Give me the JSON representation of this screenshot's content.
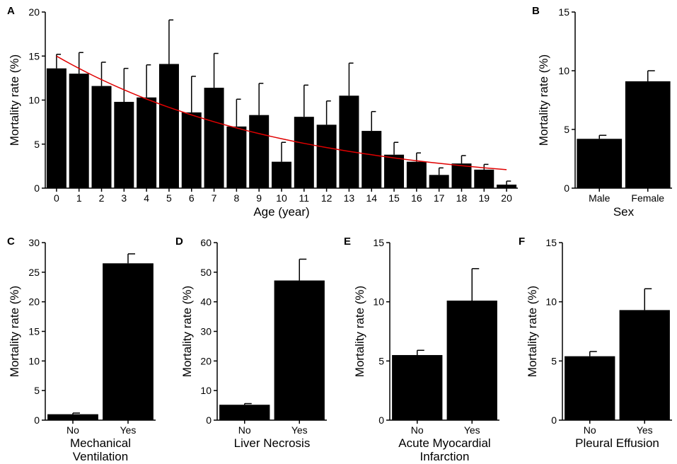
{
  "chart_data": [
    {
      "panel": "A",
      "type": "bar",
      "xlabel": "Age (year)",
      "ylabel": "Mortality rate (%)",
      "ylim": [
        0,
        20
      ],
      "yticks": [
        0,
        5,
        10,
        15,
        20
      ],
      "categories": [
        "0",
        "1",
        "2",
        "3",
        "4",
        "5",
        "6",
        "7",
        "8",
        "9",
        "10",
        "11",
        "12",
        "13",
        "14",
        "15",
        "16",
        "17",
        "18",
        "19",
        "20"
      ],
      "values": [
        13.6,
        13.0,
        11.6,
        9.8,
        10.3,
        14.1,
        8.6,
        11.4,
        7.0,
        8.3,
        3.0,
        8.1,
        7.2,
        10.5,
        6.5,
        3.8,
        3.0,
        1.5,
        2.8,
        2.1,
        0.4
      ],
      "errors": [
        1.6,
        2.4,
        2.7,
        3.8,
        3.7,
        5.0,
        4.1,
        3.9,
        3.1,
        3.6,
        2.2,
        3.6,
        2.7,
        3.7,
        2.2,
        1.4,
        1.0,
        0.8,
        0.9,
        0.6,
        0.4
      ],
      "fit_line": {
        "color": "#e00000",
        "x": [
          0,
          20
        ],
        "y_start": 15.0,
        "y_end": 2.1
      }
    },
    {
      "panel": "B",
      "type": "bar",
      "xlabel": "Sex",
      "ylabel": "Mortality rate (%)",
      "ylim": [
        0,
        15
      ],
      "yticks": [
        0,
        5,
        10,
        15
      ],
      "categories": [
        "Male",
        "Female"
      ],
      "values": [
        4.2,
        9.1
      ],
      "errors": [
        0.3,
        0.9
      ]
    },
    {
      "panel": "C",
      "type": "bar",
      "xlabel": [
        "Mechanical",
        "Ventilation"
      ],
      "ylabel": "Mortality rate (%)",
      "ylim": [
        0,
        30
      ],
      "yticks": [
        0,
        5,
        10,
        15,
        20,
        25,
        30
      ],
      "categories": [
        "No",
        "Yes"
      ],
      "values": [
        1.0,
        26.5
      ],
      "errors": [
        0.2,
        1.6
      ]
    },
    {
      "panel": "D",
      "type": "bar",
      "xlabel": [
        "Liver Necrosis"
      ],
      "ylabel": "Mortality rate (%)",
      "ylim": [
        0,
        60
      ],
      "yticks": [
        0,
        10,
        20,
        30,
        40,
        50,
        60
      ],
      "categories": [
        "No",
        "Yes"
      ],
      "values": [
        5.2,
        47.2
      ],
      "errors": [
        0.4,
        7.2
      ]
    },
    {
      "panel": "E",
      "type": "bar",
      "xlabel": [
        "Acute Myocardial",
        "Infarction"
      ],
      "ylabel": "Mortality rate (%)",
      "ylim": [
        0,
        15
      ],
      "yticks": [
        0,
        5,
        10,
        15
      ],
      "categories": [
        "No",
        "Yes"
      ],
      "values": [
        5.5,
        10.1
      ],
      "errors": [
        0.4,
        2.7
      ]
    },
    {
      "panel": "F",
      "type": "bar",
      "xlabel": [
        "Pleural Effusion"
      ],
      "ylabel": "Mortality rate (%)",
      "ylim": [
        0,
        15
      ],
      "yticks": [
        0,
        5,
        10,
        15
      ],
      "categories": [
        "No",
        "Yes"
      ],
      "values": [
        5.4,
        9.3
      ],
      "errors": [
        0.4,
        1.8
      ]
    }
  ],
  "colors": {
    "bar": "#000000",
    "fit": "#e00000",
    "axis": "#000000"
  }
}
